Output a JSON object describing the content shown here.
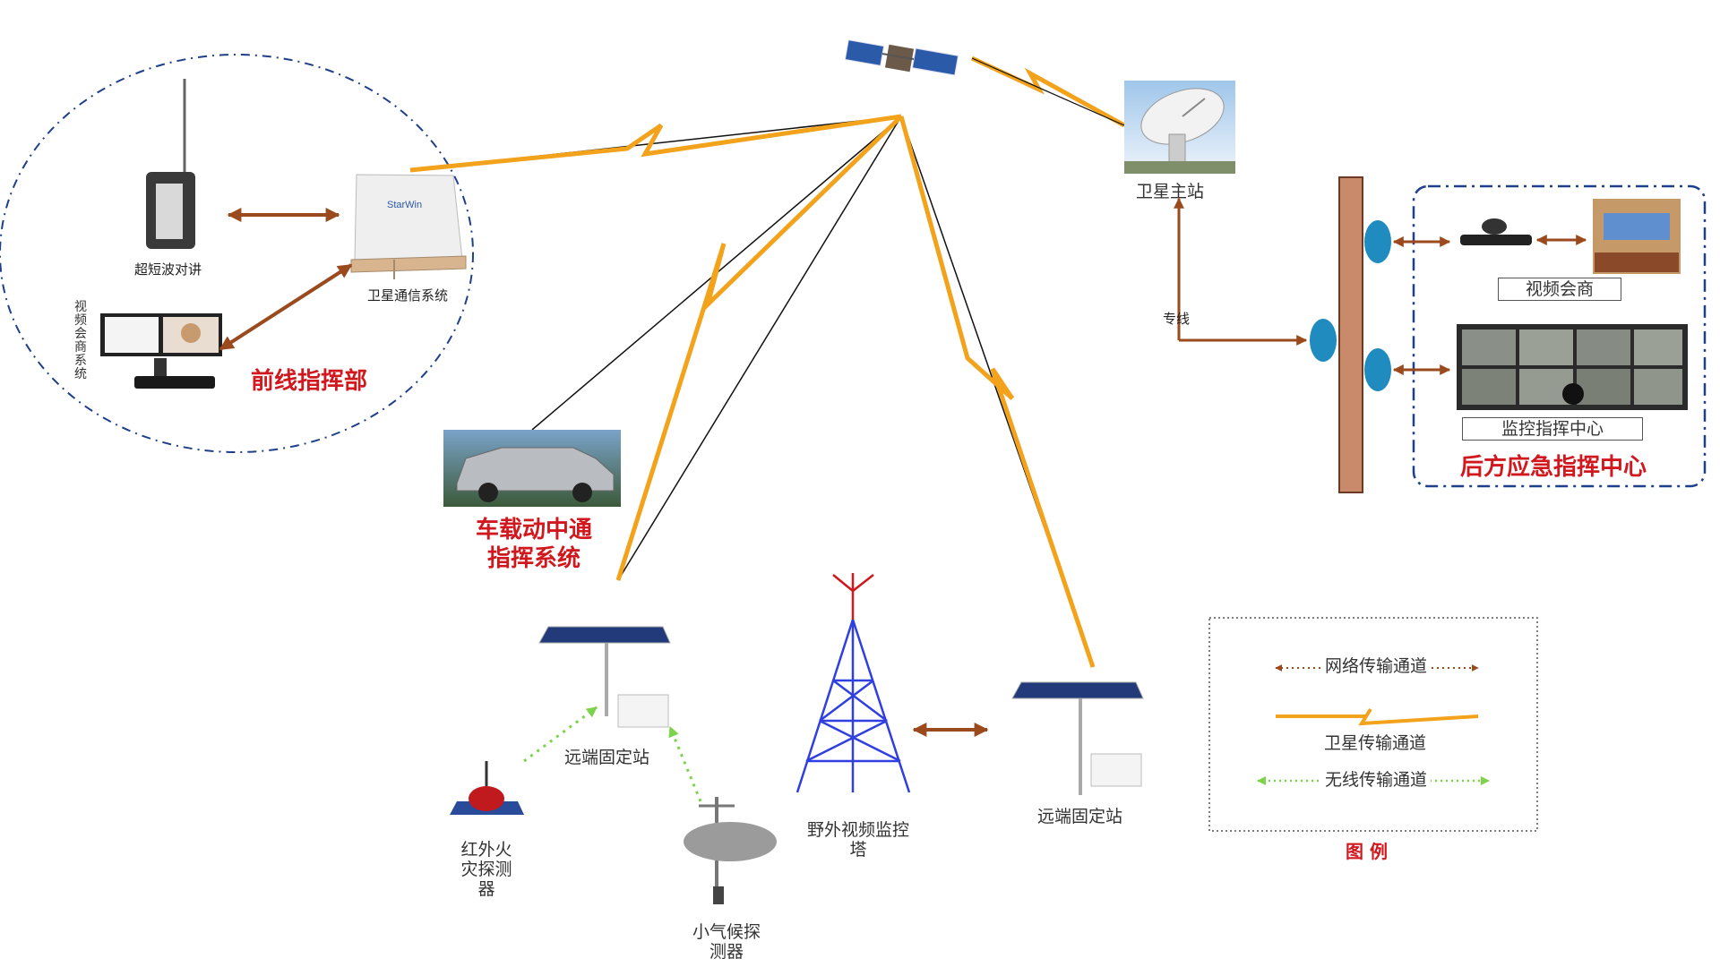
{
  "labels": {
    "shortwave_radio": "超短波对讲",
    "satellite_comm_system": "卫星通信系统",
    "video_conf_system_vertical": "视频会商系统",
    "front_command": "前线指挥部",
    "satellite_master_station": "卫星主站",
    "leased_line": "专线",
    "video_conference": "视频会商",
    "monitor_command_center": "监控指挥中心",
    "rear_command_center": "后方应急指挥中心",
    "vehicle_line1": "车载动中通",
    "vehicle_line2": "指挥系统",
    "remote_station_left": "远端固定站",
    "remote_station_right": "远端固定站",
    "infrared_fire_detector": "红外火灾探测器",
    "weather_detector": "小气候探测器",
    "tower_label": "野外视频监控塔",
    "starwin": "StarWin"
  },
  "legend": {
    "network_channel": "网络传输通道",
    "satellite_channel": "卫星传输通道",
    "wireless_channel": "无线传输通道",
    "title": "图 例"
  },
  "colors": {
    "satellite_link": "#f2a21b",
    "network_arrow": "#9a4a1c",
    "wireless_arrow": "#7dd34a",
    "title_red": "#d0181e",
    "dashed_blue": "#1e3f8a",
    "tower_blue": "#2f3fe0",
    "pole": "#c98a6c"
  },
  "icons": [
    "satellite-icon",
    "dish-antenna-icon",
    "radio-icon",
    "flat-antenna-icon",
    "video-terminal-icon",
    "car-icon",
    "solar-panel-icon",
    "tower-icon",
    "router-icon",
    "weather-station-icon",
    "fire-detector-icon"
  ]
}
